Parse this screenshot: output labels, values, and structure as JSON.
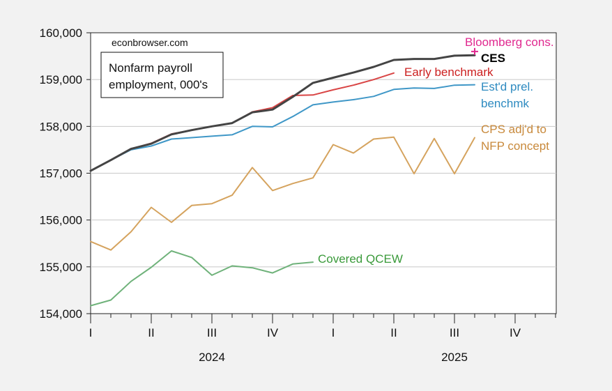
{
  "chart_data": {
    "type": "line",
    "title_lines": [
      "Nonfarm payroll",
      "employment, 000's"
    ],
    "source_note": "econbrowser.com",
    "ylim": [
      154000,
      160000
    ],
    "y_ticks": [
      154000,
      155000,
      156000,
      157000,
      158000,
      159000,
      160000
    ],
    "y_tick_labels": [
      "154,000",
      "155,000",
      "156,000",
      "157,000",
      "158,000",
      "159,000",
      "160,000"
    ],
    "x_month_index_range": [
      0,
      23
    ],
    "quarter_ticks": [
      {
        "label": "I",
        "month": 0
      },
      {
        "label": "II",
        "month": 3
      },
      {
        "label": "III",
        "month": 6
      },
      {
        "label": "IV",
        "month": 9
      },
      {
        "label": "I",
        "month": 12
      },
      {
        "label": "II",
        "month": 15
      },
      {
        "label": "III",
        "month": 18
      },
      {
        "label": "IV",
        "month": 21
      }
    ],
    "years": [
      {
        "label": "2024",
        "month": 6
      },
      {
        "label": "2025",
        "month": 18
      }
    ],
    "grid": "horizontal",
    "series": [
      {
        "name": "Covered QCEW",
        "color": "#6fb27a",
        "width": 2,
        "x": [
          0,
          1,
          2,
          3,
          4,
          5,
          6,
          7,
          8,
          9,
          10,
          11
        ],
        "values": [
          154170,
          154290,
          154690,
          154990,
          155340,
          155200,
          154820,
          155020,
          154980,
          154870,
          155060,
          155100
        ]
      },
      {
        "name": "CPS adj'd to NFP concept",
        "label_lines": [
          "CPS adj'd to",
          "NFP concept"
        ],
        "color": "#d5a35e",
        "width": 2,
        "x": [
          0,
          1,
          2,
          3,
          4,
          5,
          6,
          7,
          8,
          9,
          10,
          11,
          12,
          13,
          14,
          15,
          16,
          17,
          18,
          19
        ],
        "values": [
          155540,
          155360,
          155750,
          156270,
          155950,
          156310,
          156350,
          156530,
          157120,
          156630,
          156780,
          156900,
          157610,
          157430,
          157730,
          157770,
          156990,
          157740,
          156990,
          157760
        ]
      },
      {
        "name": "Est'd prel. benchmk",
        "label_lines": [
          "Est'd prel.",
          "benchmk"
        ],
        "color": "#3f97c7",
        "width": 2,
        "x": [
          0,
          1,
          2,
          3,
          4,
          5,
          6,
          7,
          8,
          9,
          10,
          11,
          12,
          13,
          14,
          15,
          16,
          17,
          18,
          19
        ],
        "values": [
          157050,
          157280,
          157500,
          157580,
          157730,
          157760,
          157790,
          157820,
          158000,
          157990,
          158210,
          158460,
          158520,
          158570,
          158640,
          158790,
          158820,
          158810,
          158880,
          158890
        ]
      },
      {
        "name": "Early benchmark",
        "color": "#d94545",
        "width": 2,
        "x": [
          0,
          1,
          2,
          3,
          4,
          5,
          6,
          7,
          8,
          9,
          10,
          11,
          12,
          13,
          14,
          15
        ],
        "values": [
          157050,
          157280,
          157520,
          157640,
          157840,
          157920,
          158000,
          158070,
          158310,
          158400,
          158660,
          158670,
          158780,
          158880,
          159000,
          159140
        ]
      },
      {
        "name": "CES",
        "color": "#444444",
        "width": 3,
        "x": [
          0,
          1,
          2,
          3,
          4,
          5,
          6,
          7,
          8,
          9,
          10,
          11,
          12,
          13,
          14,
          15,
          16,
          17,
          18,
          19
        ],
        "values": [
          157050,
          157280,
          157520,
          157630,
          157830,
          157920,
          158000,
          158070,
          158300,
          158360,
          158630,
          158930,
          159040,
          159150,
          159270,
          159420,
          159440,
          159440,
          159510,
          159520
        ]
      },
      {
        "name": "Bloomberg cons.",
        "color": "#e0288f",
        "marker": "plus",
        "x": [
          19.0
        ],
        "values": [
          159600
        ]
      }
    ]
  }
}
